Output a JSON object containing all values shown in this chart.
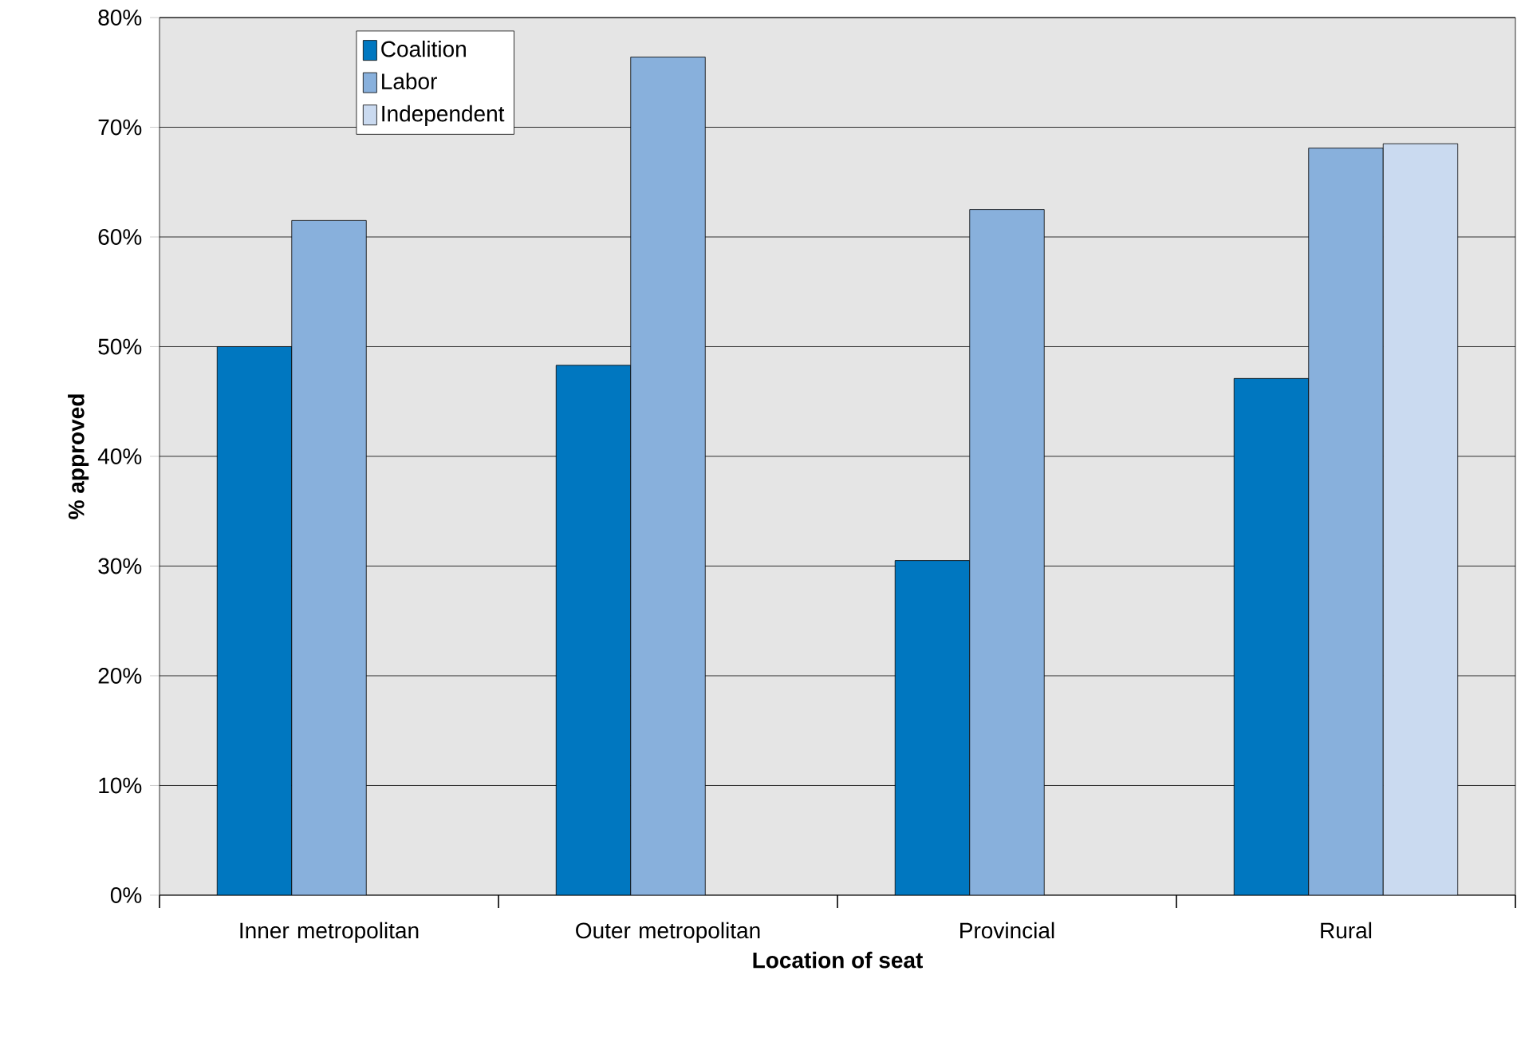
{
  "chart_data": {
    "type": "bar",
    "xlabel": "Location of seat",
    "ylabel": "% approved",
    "categories": [
      "Inner metropolitan",
      "Outer metropolitan",
      "Provincial",
      "Rural"
    ],
    "series": [
      {
        "name": "Coalition",
        "color": "#0077c0",
        "values": [
          50.0,
          48.3,
          30.5,
          47.1
        ]
      },
      {
        "name": "Labor",
        "color": "#88b0dc",
        "values": [
          61.5,
          76.4,
          62.5,
          68.1
        ]
      },
      {
        "name": "Independent",
        "color": "#cadaf0",
        "values": [
          null,
          null,
          null,
          68.5
        ]
      }
    ],
    "ylim": [
      0,
      80
    ],
    "yticks": [
      {
        "value": 0,
        "label": "0%"
      },
      {
        "value": 10,
        "label": "10%"
      },
      {
        "value": 20,
        "label": "20%"
      },
      {
        "value": 30,
        "label": "30%"
      },
      {
        "value": 40,
        "label": "40%"
      },
      {
        "value": 50,
        "label": "50%"
      },
      {
        "value": 60,
        "label": "60%"
      },
      {
        "value": 70,
        "label": "70%"
      },
      {
        "value": 80,
        "label": "80%"
      }
    ],
    "grid": "y",
    "legend": "top left"
  }
}
